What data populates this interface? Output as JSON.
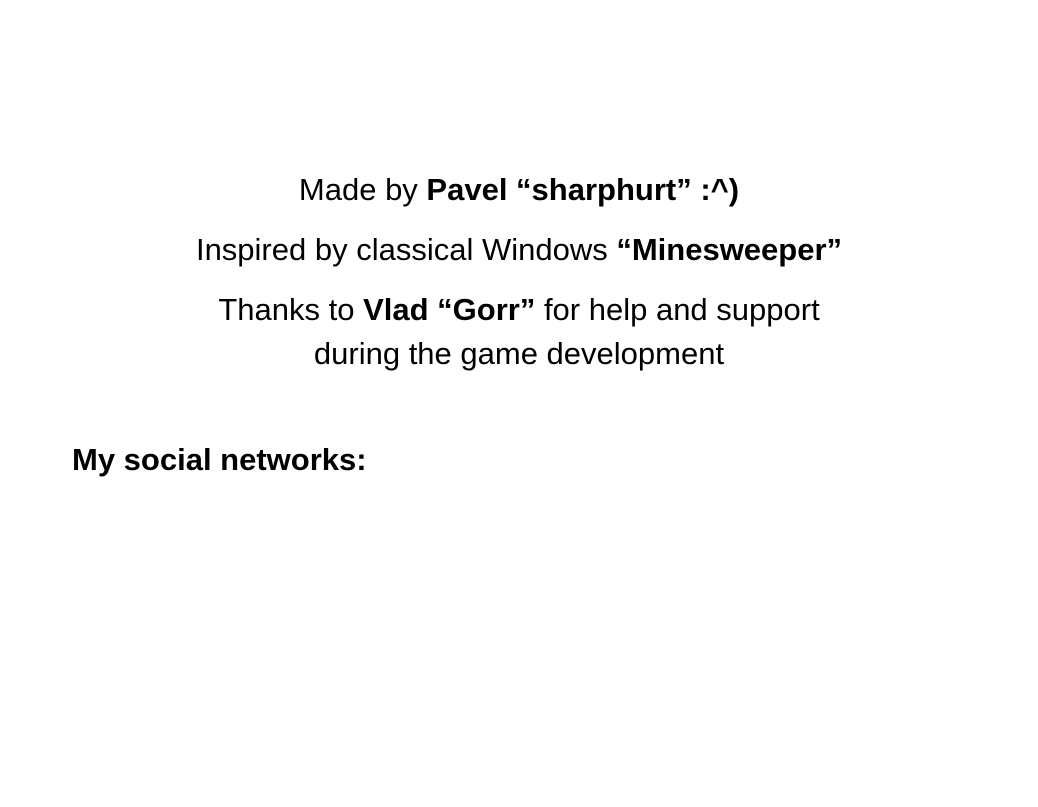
{
  "credits": {
    "made_by_prefix": "Made by ",
    "made_by_name": "Pavel “sharphurt” :^)",
    "inspired_prefix": "Inspired by classical Windows ",
    "inspired_game": "“Minesweeper”",
    "thanks_prefix": "Thanks to ",
    "thanks_name": "Vlad “Gorr”",
    "thanks_suffix_line1": " for help and support",
    "thanks_suffix_line2": "during the game development"
  },
  "social": {
    "heading": "My social networks:"
  }
}
